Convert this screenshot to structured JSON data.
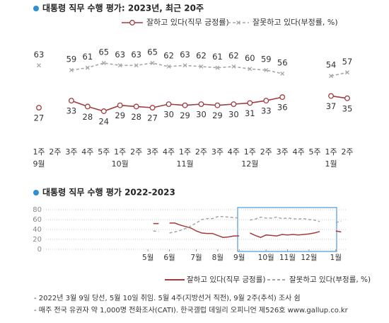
{
  "chart_data": [
    {
      "type": "line",
      "title": "대통령 직무 수행 평가: 2023년, 최근 20주",
      "categories": [
        "1주",
        "2주",
        "3주",
        "4주",
        "5주",
        "1주",
        "2주",
        "3주",
        "4주",
        "1주",
        "2주",
        "3주",
        "4주",
        "1주",
        "2주",
        "3주",
        "4주",
        "5주",
        "1주",
        "2주"
      ],
      "months": [
        "9월",
        null,
        null,
        null,
        null,
        "10월",
        null,
        null,
        null,
        "11월",
        null,
        null,
        null,
        "12월",
        null,
        null,
        null,
        null,
        "1월",
        null
      ],
      "series": [
        {
          "name": "잘하고 있다(직무 긍정률)",
          "color": "#a23b3e",
          "marker": "circle",
          "dashed": false,
          "values": [
            27,
            null,
            33,
            28,
            24,
            29,
            28,
            27,
            30,
            29,
            30,
            29,
            30,
            31,
            33,
            36,
            null,
            null,
            37,
            35
          ]
        },
        {
          "name": "잘못하고 있다(부정률, %)",
          "color": "#a6a6a6",
          "marker": "x",
          "dashed": true,
          "values": [
            63,
            null,
            59,
            61,
            65,
            63,
            63,
            65,
            62,
            63,
            62,
            61,
            62,
            60,
            59,
            56,
            null,
            null,
            54,
            57
          ]
        }
      ]
    },
    {
      "type": "line",
      "title": "대통령 직무 수행 평가 2022-2023",
      "x": [
        0,
        1,
        2,
        3,
        4,
        5,
        6,
        7,
        8,
        9,
        10,
        11,
        12,
        13,
        14,
        15,
        16,
        17,
        18,
        19,
        20,
        21,
        22,
        23,
        24,
        25,
        26,
        27,
        28,
        29,
        30,
        31,
        32,
        33,
        34,
        35,
        36
      ],
      "xlim": [
        -19,
        37
      ],
      "xticks": [
        {
          "value": 0,
          "label": "5월"
        },
        {
          "value": 4,
          "label": "6월"
        },
        {
          "value": 9,
          "label": "7월"
        },
        {
          "value": 13,
          "label": "8월"
        },
        {
          "value": 17,
          "label": "9월"
        },
        {
          "value": 22,
          "label": "10월"
        },
        {
          "value": 26,
          "label": "11월"
        },
        {
          "value": 30,
          "label": "12월"
        },
        {
          "value": 35,
          "label": "1월"
        }
      ],
      "ylim": [
        0,
        80
      ],
      "yticks": [
        0,
        20,
        40,
        60,
        80
      ],
      "grid": true,
      "series": [
        {
          "name": "잘하고 있다(직무 긍정률)",
          "color": "#a23b3e",
          "dashed": false,
          "values": [
            null,
            52,
            52,
            null,
            53,
            53,
            49,
            46,
            43,
            37,
            33,
            32,
            32,
            28,
            24,
            25,
            27,
            27,
            null,
            33,
            28,
            24,
            29,
            28,
            27,
            30,
            29,
            30,
            29,
            30,
            31,
            33,
            36,
            null,
            null,
            37,
            35
          ]
        },
        {
          "name": "잘못하고 있다(부정률, %)",
          "color": "#a6a6a6",
          "dashed": true,
          "values": [
            null,
            37,
            36,
            null,
            33,
            35,
            38,
            42,
            47,
            53,
            60,
            62,
            62,
            66,
            66,
            65,
            64,
            63,
            null,
            59,
            61,
            65,
            63,
            63,
            65,
            62,
            63,
            62,
            61,
            62,
            60,
            59,
            56,
            null,
            null,
            54,
            57
          ]
        }
      ]
    }
  ],
  "notes": [
    "- 2022년 3월 9일 당선, 5월 10일 취임. 5월 4주(지방선거 직전), 9월 2주(추석) 조사 쉼",
    "- 매주 전국 유권자 약 1,000명 전화조사(CATI). 한국갤럽 데일리 오피니언 제526호 www.gallup.co.kr"
  ]
}
